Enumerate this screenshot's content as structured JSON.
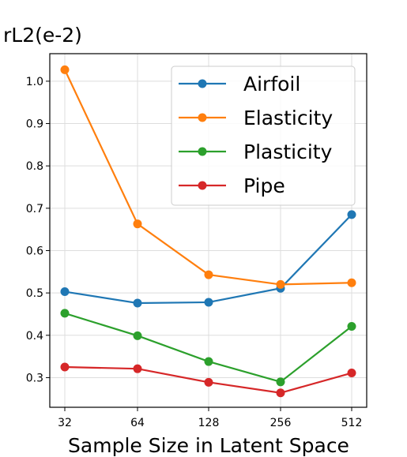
{
  "chart_data": {
    "type": "line",
    "ylabel": "rL2(e-2)",
    "xlabel": "Sample Size in Latent Space",
    "categories": [
      "32",
      "64",
      "128",
      "256",
      "512"
    ],
    "ylim": [
      0.23,
      1.065
    ],
    "yticks": [
      "0.3",
      "0.4",
      "0.5",
      "0.6",
      "0.7",
      "0.8",
      "0.9",
      "1.0"
    ],
    "grid": true,
    "legend_position": "top-right",
    "series": [
      {
        "name": "Airfoil",
        "color": "#1f77b4",
        "values": [
          0.503,
          0.476,
          0.478,
          0.511,
          0.685
        ]
      },
      {
        "name": "Elasticity",
        "color": "#ff7f0e",
        "values": [
          1.027,
          0.663,
          0.543,
          0.52,
          0.524
        ]
      },
      {
        "name": "Plasticity",
        "color": "#2ca02c",
        "values": [
          0.452,
          0.399,
          0.338,
          0.29,
          0.421
        ]
      },
      {
        "name": "Pipe",
        "color": "#d62728",
        "values": [
          0.325,
          0.321,
          0.289,
          0.264,
          0.311
        ]
      }
    ]
  }
}
